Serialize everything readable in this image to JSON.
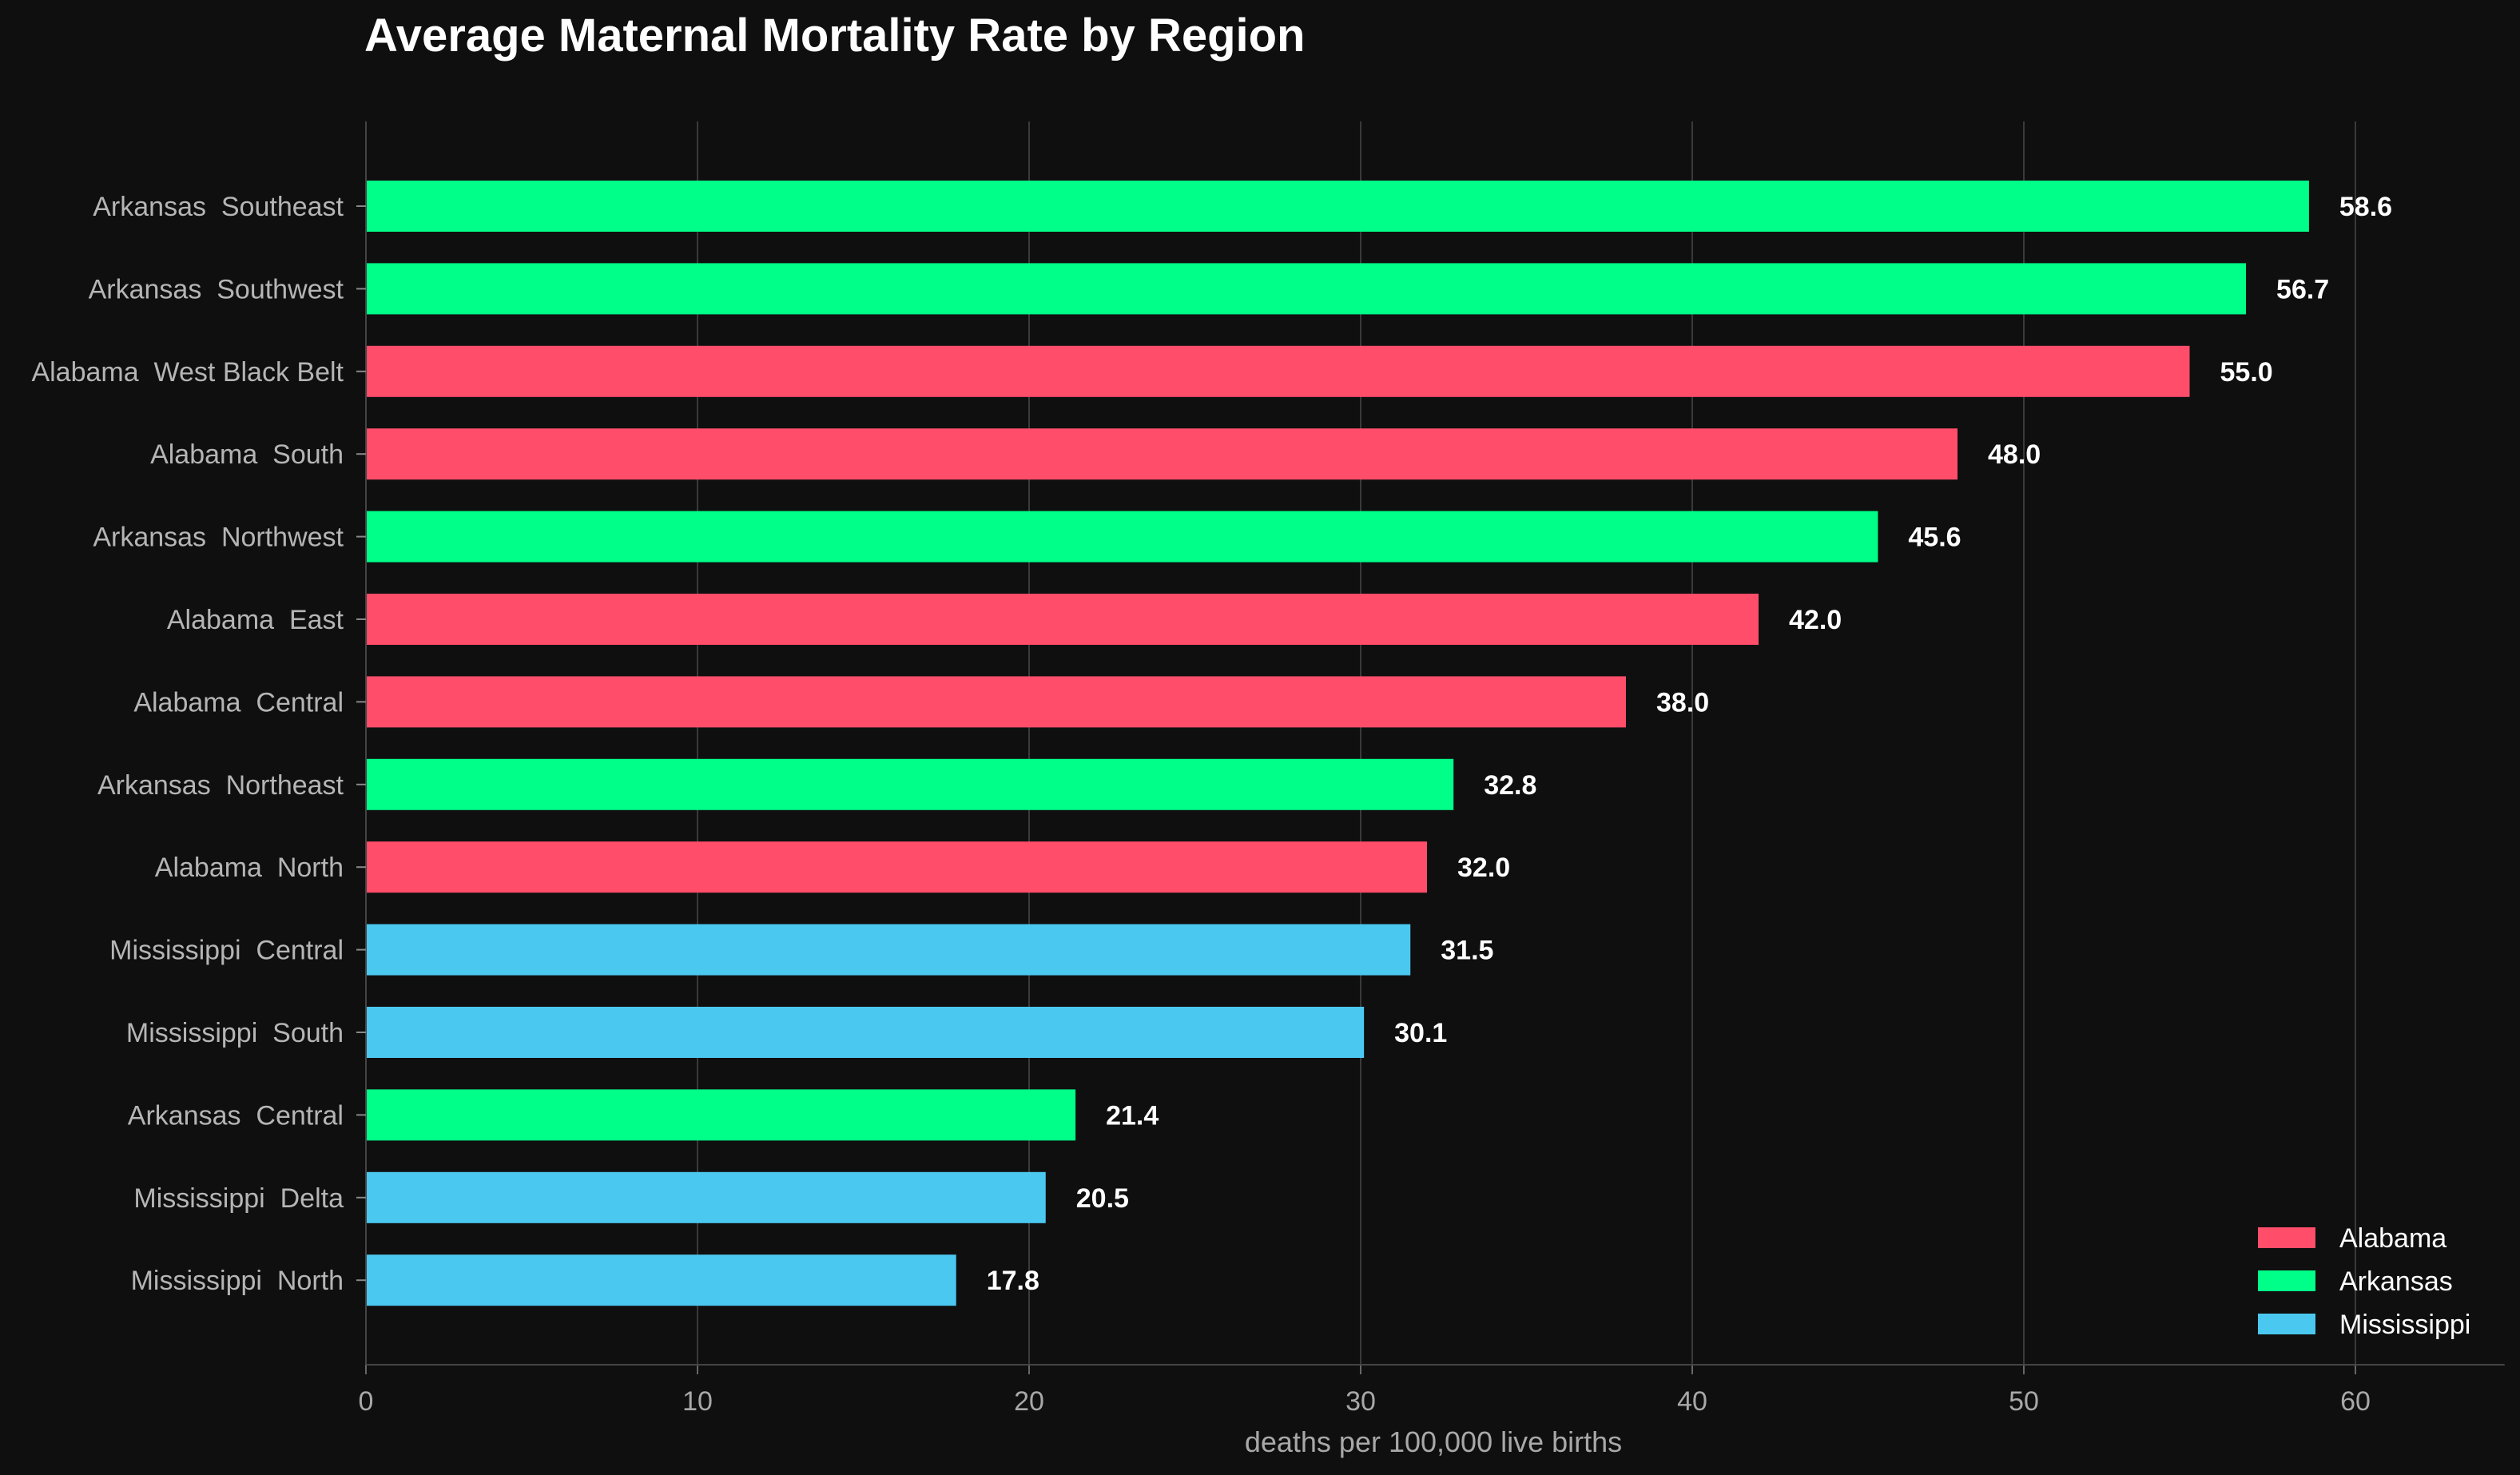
{
  "chart_data": {
    "type": "bar",
    "orientation": "horizontal",
    "title": "Average Maternal Mortality Rate by Region",
    "xlabel": "deaths per 100,000 live births",
    "ylabel": "",
    "xlim": [
      0,
      64.5
    ],
    "xticks": [
      0,
      10,
      20,
      30,
      40,
      50,
      60
    ],
    "grid": "vertical",
    "legend_position": "bottom-right",
    "categories": [
      "Arkansas  Southeast",
      "Arkansas  Southwest",
      "Alabama  West Black Belt",
      "Alabama  South",
      "Arkansas  Northwest",
      "Alabama  East",
      "Alabama  Central",
      "Arkansas  Northeast",
      "Alabama  North",
      "Mississippi  Central",
      "Mississippi  South",
      "Arkansas  Central",
      "Mississippi  Delta",
      "Mississippi  North"
    ],
    "values": [
      58.6,
      56.7,
      55.0,
      48.0,
      45.6,
      42.0,
      38.0,
      32.8,
      32.0,
      31.5,
      30.1,
      21.4,
      20.5,
      17.8
    ],
    "value_labels": [
      "58.6",
      "56.7",
      "55.0",
      "48.0",
      "45.6",
      "42.0",
      "38.0",
      "32.8",
      "32.0",
      "31.5",
      "30.1",
      "21.4",
      "20.5",
      "17.8"
    ],
    "bar_groups": [
      "Arkansas",
      "Arkansas",
      "Alabama",
      "Alabama",
      "Arkansas",
      "Alabama",
      "Alabama",
      "Arkansas",
      "Alabama",
      "Mississippi",
      "Mississippi",
      "Arkansas",
      "Mississippi",
      "Mississippi"
    ],
    "legend": [
      {
        "name": "Alabama",
        "color": "#ff4d6a"
      },
      {
        "name": "Arkansas",
        "color": "#00ff88"
      },
      {
        "name": "Mississippi",
        "color": "#4bc8f0"
      }
    ]
  },
  "colors": {
    "background": "#0f0f0f",
    "grid": "#3a3a3a",
    "axis": "#444444"
  }
}
